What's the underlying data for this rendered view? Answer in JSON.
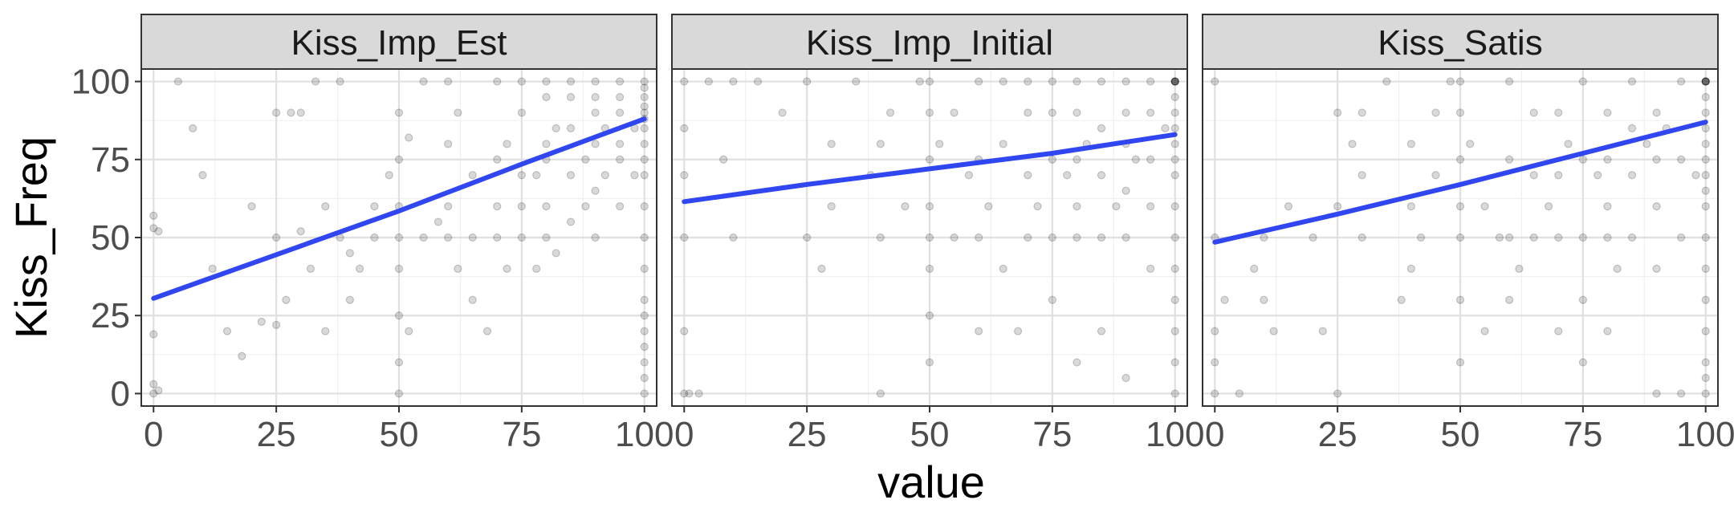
{
  "chart_data": {
    "type": "scatter",
    "facets": [
      "Kiss_Imp_Est",
      "Kiss_Imp_Initial",
      "Kiss_Satis"
    ],
    "xlabel": "value",
    "ylabel": "Kiss_Freq",
    "xlim": [
      -2.5,
      102.5
    ],
    "ylim": [
      -4,
      104
    ],
    "x_ticks": [
      0,
      25,
      50,
      75,
      100
    ],
    "y_ticks": [
      0,
      25,
      50,
      75,
      100
    ],
    "grid": true,
    "point_color": "#000000",
    "point_alpha": 0.15,
    "fit_line_color": "#3046F0",
    "fit_lines": [
      {
        "facet": "Kiss_Imp_Est",
        "x": [
          0,
          25,
          50,
          75,
          100
        ],
        "y": [
          30.5,
          44.5,
          58.5,
          73.5,
          88
        ]
      },
      {
        "facet": "Kiss_Imp_Initial",
        "x": [
          0,
          25,
          50,
          75,
          100
        ],
        "y": [
          61.5,
          67,
          72,
          77,
          83
        ]
      },
      {
        "facet": "Kiss_Satis",
        "x": [
          0,
          25,
          50,
          75,
          100
        ],
        "y": [
          48.5,
          57.5,
          67,
          77,
          87
        ]
      }
    ],
    "points": [
      {
        "facet": "Kiss_Imp_Est",
        "x": [
          0,
          0,
          0,
          0,
          0,
          1,
          1,
          5,
          8,
          10,
          12,
          15,
          18,
          20,
          22,
          25,
          25,
          25,
          27,
          28,
          30,
          30,
          32,
          33,
          35,
          35,
          38,
          38,
          40,
          40,
          42,
          45,
          45,
          48,
          50,
          50,
          50,
          50,
          50,
          50,
          50,
          50,
          52,
          52,
          55,
          55,
          58,
          60,
          60,
          60,
          60,
          62,
          62,
          65,
          65,
          65,
          68,
          70,
          70,
          70,
          70,
          72,
          72,
          75,
          75,
          75,
          75,
          75,
          78,
          78,
          80,
          80,
          80,
          80,
          80,
          80,
          82,
          82,
          85,
          85,
          85,
          85,
          85,
          88,
          88,
          90,
          90,
          90,
          90,
          90,
          90,
          92,
          92,
          95,
          95,
          95,
          95,
          95,
          95,
          98,
          98,
          100,
          100,
          100,
          100,
          100,
          100,
          100,
          100,
          100,
          100,
          100,
          100,
          100,
          100,
          100,
          100,
          100,
          100,
          100,
          100
        ],
        "y": [
          0,
          3,
          19,
          53,
          57,
          1,
          52,
          100,
          85,
          70,
          40,
          20,
          12,
          60,
          23,
          90,
          50,
          22,
          30,
          90,
          90,
          52,
          40,
          100,
          60,
          20,
          50,
          100,
          45,
          30,
          40,
          60,
          50,
          70,
          0,
          10,
          25,
          40,
          50,
          60,
          75,
          90,
          82,
          20,
          100,
          50,
          55,
          50,
          60,
          80,
          100,
          90,
          40,
          50,
          70,
          30,
          20,
          50,
          60,
          75,
          100,
          80,
          40,
          50,
          60,
          70,
          90,
          100,
          40,
          70,
          50,
          60,
          75,
          80,
          95,
          100,
          85,
          45,
          55,
          70,
          85,
          95,
          100,
          75,
          60,
          50,
          65,
          80,
          90,
          95,
          100,
          85,
          70,
          60,
          75,
          80,
          90,
          95,
          100,
          85,
          70,
          0,
          5,
          10,
          15,
          20,
          25,
          30,
          40,
          50,
          60,
          70,
          75,
          80,
          85,
          88,
          90,
          92,
          95,
          98,
          100
        ]
      },
      {
        "facet": "Kiss_Imp_Initial",
        "x": [
          0,
          0,
          0,
          0,
          0,
          0,
          1,
          3,
          5,
          8,
          10,
          10,
          15,
          20,
          25,
          25,
          28,
          30,
          30,
          35,
          38,
          40,
          40,
          40,
          42,
          45,
          48,
          50,
          50,
          50,
          50,
          50,
          50,
          50,
          50,
          52,
          55,
          55,
          58,
          60,
          60,
          60,
          60,
          62,
          65,
          65,
          65,
          68,
          70,
          70,
          70,
          70,
          72,
          75,
          75,
          75,
          75,
          75,
          78,
          80,
          80,
          80,
          80,
          80,
          80,
          82,
          85,
          85,
          85,
          85,
          85,
          88,
          90,
          90,
          90,
          90,
          90,
          90,
          92,
          95,
          95,
          95,
          95,
          95,
          98,
          100,
          100,
          100,
          100,
          100,
          100,
          100,
          100,
          100,
          100,
          100,
          100,
          100,
          100,
          100,
          100,
          100,
          100
        ],
        "y": [
          0,
          20,
          50,
          70,
          85,
          100,
          0,
          0,
          100,
          75,
          100,
          50,
          100,
          90,
          100,
          50,
          40,
          80,
          60,
          100,
          70,
          80,
          50,
          0,
          90,
          60,
          100,
          10,
          25,
          40,
          50,
          60,
          75,
          90,
          100,
          80,
          50,
          90,
          70,
          20,
          50,
          75,
          100,
          60,
          40,
          80,
          100,
          20,
          50,
          70,
          90,
          100,
          60,
          30,
          50,
          75,
          90,
          100,
          70,
          10,
          50,
          60,
          75,
          90,
          100,
          80,
          20,
          50,
          70,
          85,
          100,
          60,
          5,
          50,
          65,
          80,
          90,
          100,
          75,
          40,
          60,
          75,
          90,
          100,
          85,
          0,
          10,
          20,
          30,
          40,
          50,
          60,
          70,
          75,
          80,
          85,
          90,
          95,
          100,
          100,
          100,
          100,
          100
        ]
      },
      {
        "facet": "Kiss_Satis",
        "x": [
          0,
          0,
          0,
          0,
          0,
          2,
          5,
          8,
          10,
          10,
          12,
          15,
          20,
          22,
          25,
          25,
          25,
          28,
          30,
          30,
          30,
          35,
          38,
          40,
          40,
          40,
          42,
          45,
          45,
          48,
          50,
          50,
          50,
          50,
          50,
          50,
          50,
          52,
          55,
          55,
          58,
          60,
          60,
          60,
          60,
          62,
          65,
          65,
          65,
          68,
          70,
          70,
          70,
          70,
          72,
          75,
          75,
          75,
          75,
          75,
          78,
          80,
          80,
          80,
          80,
          80,
          82,
          85,
          85,
          85,
          85,
          88,
          90,
          90,
          90,
          90,
          90,
          92,
          95,
          95,
          95,
          95,
          98,
          100,
          100,
          100,
          100,
          100,
          100,
          100,
          100,
          100,
          100,
          100,
          100,
          100,
          100,
          100,
          100,
          100,
          100,
          100,
          100
        ],
        "y": [
          0,
          10,
          20,
          50,
          100,
          30,
          0,
          40,
          30,
          50,
          20,
          60,
          50,
          20,
          0,
          60,
          90,
          80,
          90,
          50,
          70,
          100,
          30,
          40,
          60,
          80,
          50,
          70,
          90,
          100,
          10,
          30,
          50,
          60,
          75,
          90,
          100,
          80,
          20,
          60,
          50,
          30,
          50,
          75,
          100,
          40,
          50,
          70,
          90,
          60,
          20,
          50,
          70,
          90,
          80,
          10,
          30,
          50,
          75,
          100,
          70,
          20,
          50,
          60,
          75,
          90,
          40,
          50,
          70,
          85,
          100,
          80,
          0,
          40,
          60,
          75,
          90,
          85,
          0,
          50,
          75,
          100,
          70,
          0,
          5,
          10,
          20,
          30,
          40,
          50,
          60,
          65,
          70,
          75,
          80,
          85,
          90,
          95,
          100,
          100,
          100,
          100,
          100
        ]
      }
    ]
  }
}
